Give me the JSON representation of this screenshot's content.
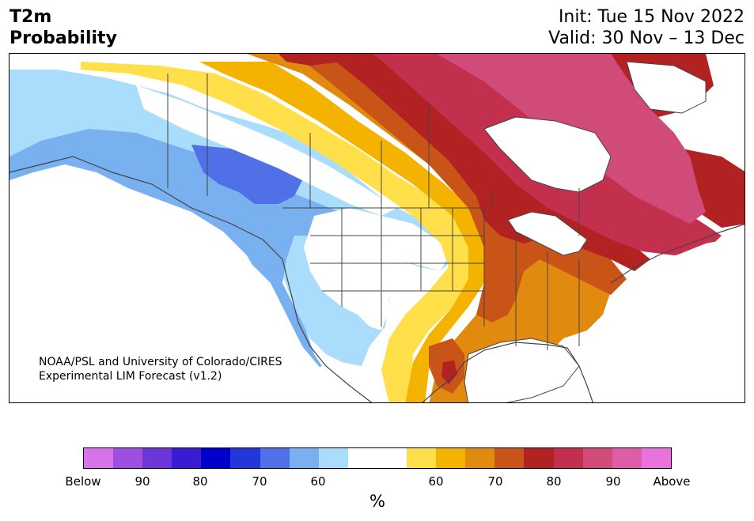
{
  "title": {
    "line1": "T2m",
    "line2": "Probability",
    "init": "Init: Tue 15 Nov 2022",
    "valid": "Valid: 30 Nov – 13 Dec"
  },
  "credit": {
    "line1": "NOAA/PSL and University of Colorado/CIRES",
    "line2": "Experimental LIM Forecast (v1.2)"
  },
  "colorbar": {
    "unit": "%",
    "colors": [
      "#d673ea",
      "#9c4fe0",
      "#6c36d9",
      "#3a1bd3",
      "#0000cc",
      "#2336d9",
      "#4f70e6",
      "#78b0f0",
      "#aadcfb",
      "#ffffff",
      "#ffffff",
      "#ffe04a",
      "#f4b300",
      "#e08a10",
      "#c85418",
      "#b22222",
      "#c2304e",
      "#d04b78",
      "#de5ca8",
      "#ea72dc"
    ],
    "tick_labels": [
      "Below",
      "90",
      "80",
      "70",
      "60",
      "60",
      "70",
      "80",
      "90",
      "Above"
    ]
  },
  "map_colors": {
    "land_neutral": "#ffffff",
    "cold_light": "#aadcfb",
    "cold_medium": "#78b0f0",
    "cold_strong": "#4f70e6",
    "warm_60": "#ffe04a",
    "warm_65": "#f4b300",
    "warm_70": "#e08a10",
    "warm_75": "#c85418",
    "warm_80": "#b22222",
    "warm_85": "#c2304e",
    "warm_90": "#d04b78",
    "borders": "#444444"
  }
}
